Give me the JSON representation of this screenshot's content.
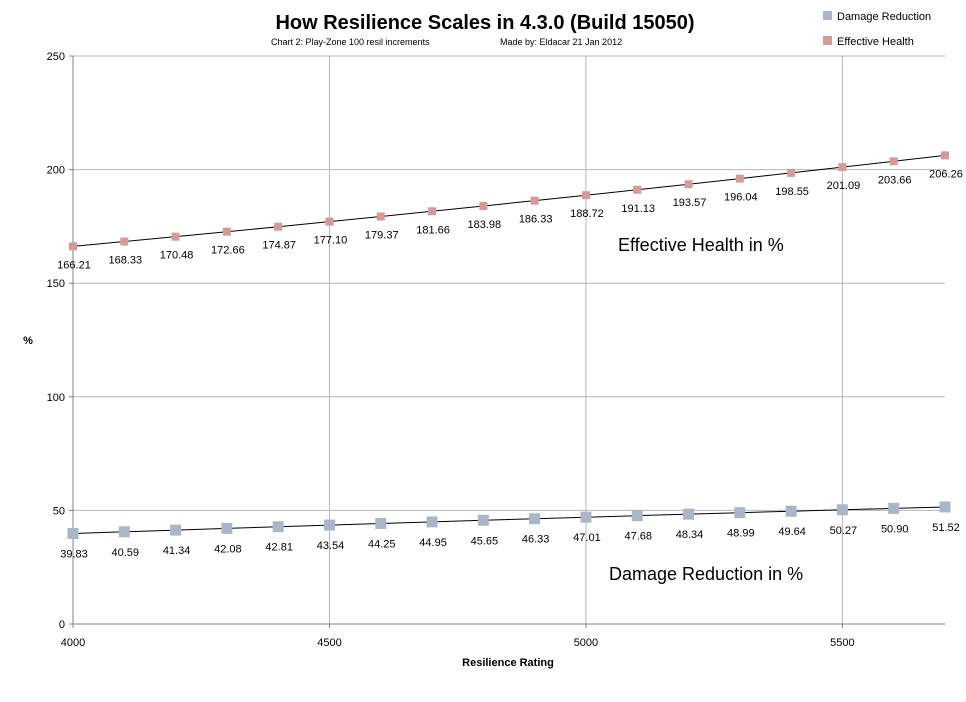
{
  "chart_data": {
    "type": "line",
    "title": "How Resilience Scales in 4.3.0 (Build 15050)",
    "subtitle_chart": "Chart 2:  Play-Zone 100 resil increments",
    "subtitle_author": "Made by: Eldacar 21 Jan 2012",
    "xlabel": "Resilience Rating",
    "ylabel": "%",
    "xlim": [
      4000,
      5700
    ],
    "ylim": [
      0,
      250
    ],
    "x_ticks": [
      4000,
      4500,
      5000,
      5500
    ],
    "y_ticks": [
      0,
      50,
      100,
      150,
      200,
      250
    ],
    "x": [
      4000,
      4100,
      4200,
      4300,
      4400,
      4500,
      4600,
      4700,
      4800,
      4900,
      5000,
      5100,
      5200,
      5300,
      5400,
      5500,
      5600,
      5700
    ],
    "series": [
      {
        "name": "Damage Reduction",
        "color": "#a9b6c9",
        "values": [
          39.83,
          40.59,
          41.34,
          42.08,
          42.81,
          43.54,
          44.25,
          44.95,
          45.65,
          46.33,
          47.01,
          47.68,
          48.34,
          48.99,
          49.64,
          50.27,
          50.9,
          51.52
        ],
        "labels": [
          "39.83",
          "40.59",
          "41.34",
          "42.08",
          "42.81",
          "43.54",
          "44.25",
          "44.95",
          "45.65",
          "46.33",
          "47.01",
          "47.68",
          "48.34",
          "48.99",
          "49.64",
          "50.27",
          "50.90",
          "51.52"
        ]
      },
      {
        "name": "Effective Health",
        "color": "#d49a9a",
        "values": [
          166.21,
          168.33,
          170.48,
          172.66,
          174.87,
          177.1,
          179.37,
          181.66,
          183.98,
          186.33,
          188.72,
          191.13,
          193.57,
          196.04,
          198.55,
          201.09,
          203.66,
          206.26
        ],
        "labels": [
          "166.21",
          "168.33",
          "170.48",
          "172.66",
          "174.87",
          "177.10",
          "179.37",
          "181.66",
          "183.98",
          "186.33",
          "188.72",
          "191.13",
          "193.57",
          "196.04",
          "198.55",
          "201.09",
          "203.66",
          "206.26"
        ]
      }
    ],
    "annotations": [
      "Effective Health in %",
      "Damage Reduction in %"
    ],
    "grid": true,
    "legend": "top-right"
  }
}
